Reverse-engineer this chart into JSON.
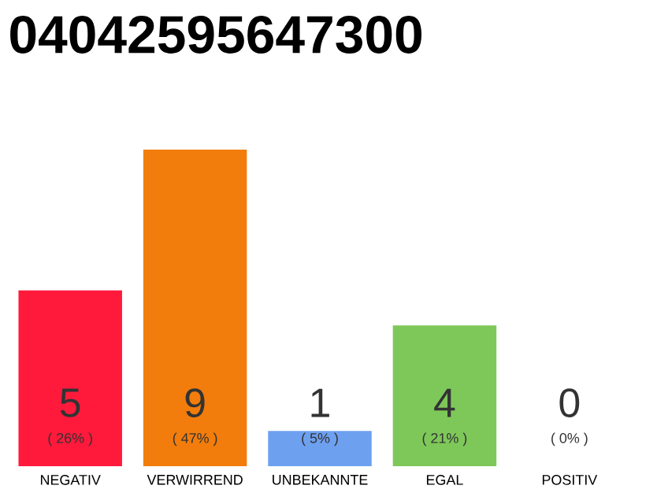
{
  "chart_data": {
    "type": "bar",
    "title": "04042595647300",
    "categories": [
      "NEGATIV",
      "VERWIRREND",
      "UNBEKANNTE",
      "EGAL",
      "POSITIV"
    ],
    "values": [
      5,
      9,
      1,
      4,
      0
    ],
    "colors": [
      "#ff1a3c",
      "#f27d0c",
      "#6ea0f0",
      "#7ec85a",
      "#bbbbbb"
    ],
    "ylim": [
      0,
      9
    ],
    "data_labels": true,
    "annotations": [
      "( 26% )",
      "( 47% )",
      "( 5% )",
      "( 21% )",
      "( 0% )"
    ]
  }
}
